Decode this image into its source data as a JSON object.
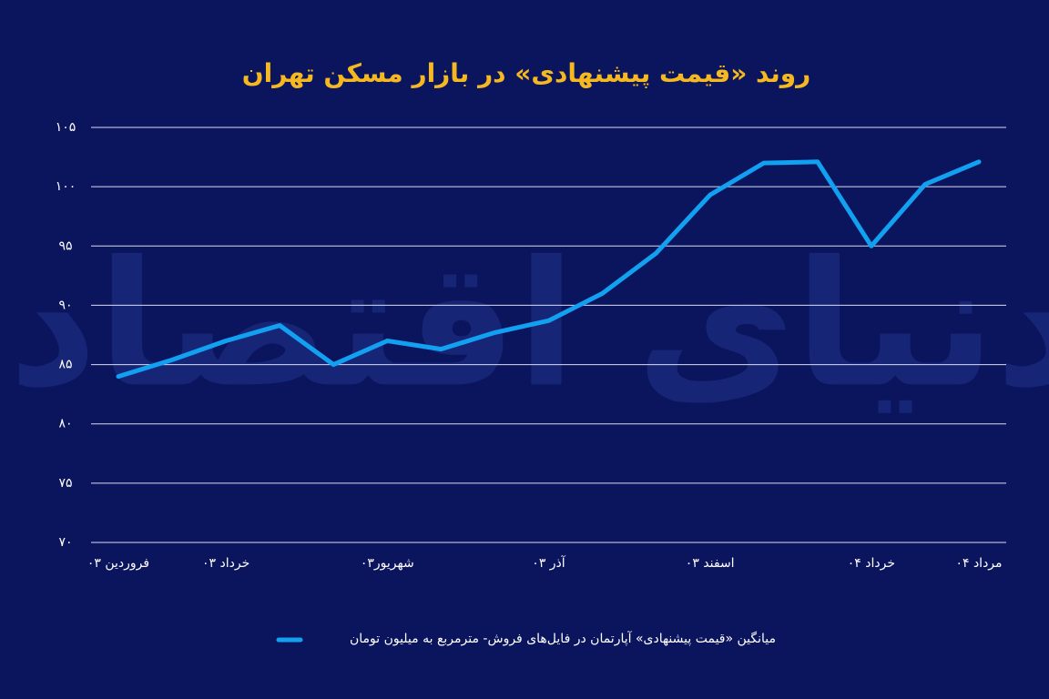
{
  "chart_data": {
    "type": "line",
    "title": "روند «قیمت پیشنهادی» در بازار مسکن تهران",
    "watermark": "دنیای اقتصاد",
    "categories": [
      "فروردین ۰۳",
      null,
      "خرداد ۰۳",
      null,
      null,
      "شهریور۰۳",
      null,
      null,
      "آذر ۰۳",
      null,
      null,
      "اسفند ۰۳",
      null,
      null,
      "خرداد ۰۴",
      null,
      "مرداد ۰۴"
    ],
    "series": [
      {
        "name": "میانگین «قیمت پیشنهادی» آپارتمان در فایل‌های فروش- مترمربع به میلیون تومان",
        "color": "#12a0f0",
        "values": [
          84.0,
          85.4,
          87.0,
          88.3,
          85.0,
          87.0,
          86.3,
          87.7,
          88.7,
          91.0,
          94.4,
          99.3,
          102.0,
          102.1,
          95.0,
          100.2,
          102.1
        ]
      }
    ],
    "ylim": [
      70,
      105
    ],
    "yticks": [
      {
        "value": 70,
        "label": "۷۰"
      },
      {
        "value": 75,
        "label": "۷۵"
      },
      {
        "value": 80,
        "label": "۸۰"
      },
      {
        "value": 85,
        "label": "۸۵"
      },
      {
        "value": 90,
        "label": "۹۰"
      },
      {
        "value": 95,
        "label": "۹۵"
      },
      {
        "value": 100,
        "label": "۱۰۰"
      },
      {
        "value": 105,
        "label": "۱۰۵"
      }
    ],
    "grid": true
  }
}
